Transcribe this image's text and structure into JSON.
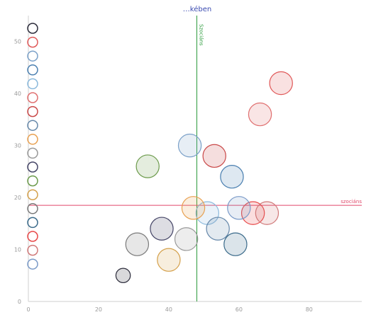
{
  "chart_data": {
    "type": "scatter",
    "title": "",
    "title_visible_fragment": "…kében",
    "xlabel": "",
    "ylabel": "",
    "xlim": [
      0,
      95
    ],
    "ylim": [
      0,
      55
    ],
    "x_ticks": [
      0,
      20,
      40,
      60,
      80
    ],
    "y_ticks": [
      0,
      10,
      20,
      30,
      40,
      50
    ],
    "grid": false,
    "legend_position": "top-left",
    "reference_lines": [
      {
        "orientation": "vertical",
        "value": 48,
        "label": "Szociáns",
        "color": "#2a9a3a"
      },
      {
        "orientation": "horizontal",
        "value": 18.5,
        "label": "szociáns",
        "color": "#e0486a"
      }
    ],
    "series": [
      {
        "name": "",
        "color": "#2b2b3a",
        "x": 27,
        "y": 5,
        "size": 0.02,
        "label": ""
      },
      {
        "name": "",
        "color": "#e05858",
        "x": 72,
        "y": 42,
        "size": 0.05,
        "label": ""
      },
      {
        "name": "",
        "color": "#7aa0c8",
        "x": 46,
        "y": 30,
        "size": 0.05,
        "label": ""
      },
      {
        "name": "",
        "color": "#4a7fb0",
        "x": 58,
        "y": 24,
        "size": 0.05,
        "label": ""
      },
      {
        "name": "",
        "color": "#8bb9dc",
        "x": 51,
        "y": 17,
        "size": 0.05,
        "label": ""
      },
      {
        "name": "",
        "color": "#e07070",
        "x": 66,
        "y": 36,
        "size": 0.05,
        "label": ""
      },
      {
        "name": "",
        "color": "#c94848",
        "x": 53,
        "y": 28,
        "size": 0.05,
        "label": ""
      },
      {
        "name": "",
        "color": "#6688aa",
        "x": 54,
        "y": 14,
        "size": 0.05,
        "label": ""
      },
      {
        "name": "",
        "color": "#e8a050",
        "x": 47,
        "y": 18,
        "size": 0.05,
        "label": ""
      },
      {
        "name": "",
        "color": "#999999",
        "x": 45,
        "y": 12,
        "size": 0.05,
        "label": ""
      },
      {
        "name": "",
        "color": "#444466",
        "x": 38,
        "y": 14,
        "size": 0.05,
        "label": ""
      },
      {
        "name": "",
        "color": "#6b9a4a",
        "x": 34,
        "y": 26,
        "size": 0.05,
        "label": ""
      },
      {
        "name": "",
        "color": "#d4a04a",
        "x": 40,
        "y": 8,
        "size": 0.05,
        "label": ""
      },
      {
        "name": "",
        "color": "#7a7a7a",
        "x": 31,
        "y": 11,
        "size": 0.05,
        "label": ""
      },
      {
        "name": "",
        "color": "#3a6a8a",
        "x": 59,
        "y": 11,
        "size": 0.05,
        "label": ""
      },
      {
        "name": "",
        "color": "#e84848",
        "x": 64,
        "y": 17,
        "size": 0.05,
        "label": ""
      },
      {
        "name": "",
        "color": "#d07878",
        "x": 68,
        "y": 17,
        "size": 0.05,
        "label": ""
      },
      {
        "name": "",
        "color": "#7a9ac8",
        "x": 60,
        "y": 18,
        "size": 0.05,
        "label": ""
      }
    ]
  }
}
